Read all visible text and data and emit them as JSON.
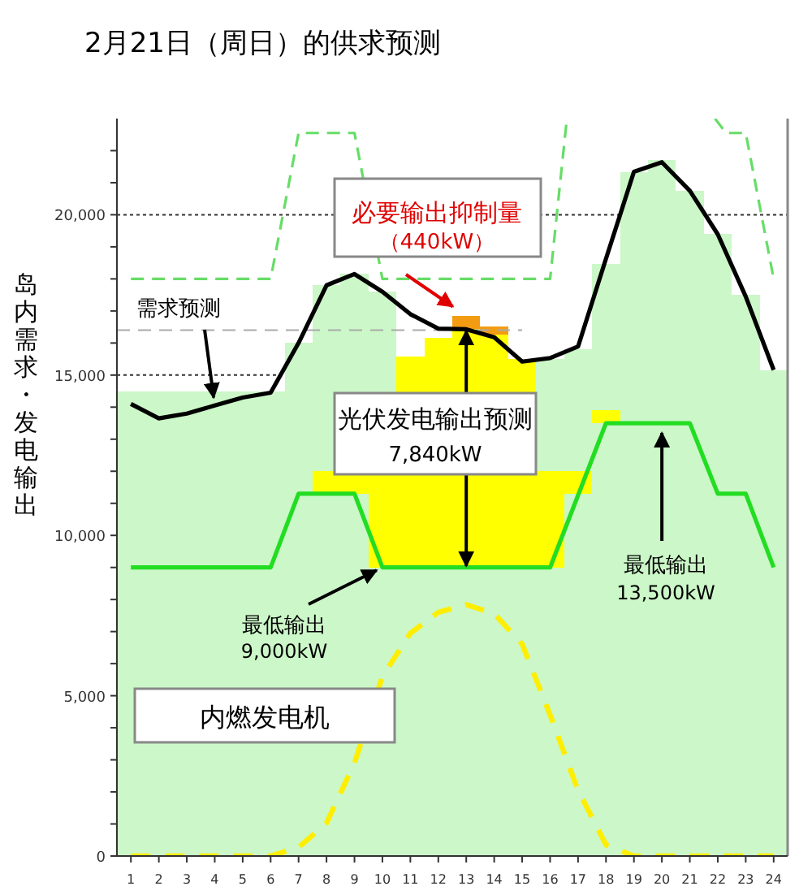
{
  "chart_data": {
    "type": "line",
    "title": "2月21日（周日）的供求预测",
    "ylabel": "岛内需求・发电输出",
    "xlim": [
      0.5,
      24.5
    ],
    "xticks": [
      1,
      2,
      3,
      4,
      5,
      6,
      7,
      8,
      9,
      10,
      11,
      12,
      13,
      14,
      15,
      16,
      17,
      18,
      19,
      20,
      21,
      22,
      23,
      24
    ],
    "ylim": [
      0,
      23000
    ],
    "yticks": [
      {
        "value": 0,
        "label": "0"
      },
      {
        "value": 1000,
        "label": null
      },
      {
        "value": 2000,
        "label": null
      },
      {
        "value": 3000,
        "label": null
      },
      {
        "value": 4000,
        "label": null
      },
      {
        "value": 5000,
        "label": "5,000"
      },
      {
        "value": 6000,
        "label": null
      },
      {
        "value": 7000,
        "label": null
      },
      {
        "value": 8000,
        "label": null
      },
      {
        "value": 9000,
        "label": null
      },
      {
        "value": 10000,
        "label": "10,000"
      },
      {
        "value": 11000,
        "label": null
      },
      {
        "value": 12000,
        "label": null
      },
      {
        "value": 13000,
        "label": null
      },
      {
        "value": 14000,
        "label": null
      },
      {
        "value": 15000,
        "label": "15,000"
      },
      {
        "value": 16000,
        "label": null
      },
      {
        "value": 17000,
        "label": null
      },
      {
        "value": 18000,
        "label": null
      },
      {
        "value": 19000,
        "label": null
      },
      {
        "value": 20000,
        "label": "20,000"
      },
      {
        "value": 21000,
        "label": null
      },
      {
        "value": 22000,
        "label": null
      }
    ],
    "grid": "y",
    "series": [
      {
        "type": "bar",
        "color": "#ccf7c8",
        "x": [
          1,
          2,
          3,
          4,
          5,
          6,
          7,
          8,
          9,
          10,
          11,
          12,
          13,
          14,
          15,
          16,
          17,
          18,
          19,
          20,
          21,
          22,
          23,
          24
        ],
        "values": [
          14500,
          14500,
          14500,
          14500,
          14500,
          14500,
          16000,
          17800,
          18150,
          17600,
          9000,
          9000,
          9000,
          9000,
          9000,
          15500,
          15800,
          18460,
          21340,
          21700,
          20750,
          19400,
          17500,
          15160
        ]
      },
      {
        "type": "bar",
        "color": "#ffff00",
        "x": [
          8,
          9,
          10,
          11,
          12,
          13,
          14,
          15,
          16,
          17,
          18
        ],
        "base": [
          11300,
          11300,
          9000,
          9000,
          9000,
          9000,
          9000,
          9000,
          9000,
          11300,
          13500
        ],
        "values": [
          700,
          700,
          3000,
          6580,
          7170,
          7430,
          7260,
          6500,
          3000,
          700,
          400
        ]
      },
      {
        "type": "bar",
        "color": "#f39c12",
        "x": [
          13,
          14
        ],
        "base": [
          16430,
          16260
        ],
        "values": [
          420,
          260
        ]
      },
      {
        "color": "#aaaaaa",
        "line_style": "dashed",
        "x": [
          0.5,
          15
        ],
        "values": [
          16400,
          16400
        ]
      },
      {
        "color": "#66dd66",
        "line_style": "dashed",
        "x": [
          1,
          6,
          7,
          9,
          10,
          16,
          16.6
        ],
        "values": [
          18000,
          18000,
          22550,
          22550,
          18000,
          18000,
          23000
        ]
      },
      {
        "color": "#66dd66",
        "line_style": "dashed",
        "x": [
          21.9,
          22.3,
          23,
          24
        ],
        "values": [
          23000,
          22550,
          22550,
          18000
        ]
      },
      {
        "color": "#ffee00",
        "line_style": "dashed",
        "x": [
          1,
          2,
          3,
          4,
          5,
          6,
          7,
          8,
          9,
          10,
          11,
          12,
          13,
          14,
          15,
          16,
          17,
          18,
          19,
          20,
          21,
          22,
          23,
          24
        ],
        "values": [
          0,
          0,
          0,
          0,
          0,
          0,
          270,
          1030,
          2900,
          5600,
          6950,
          7600,
          7840,
          7560,
          6610,
          4400,
          2050,
          350,
          0,
          0,
          0,
          0,
          0,
          0
        ]
      },
      {
        "color": "#22dd22",
        "line_style": "solid",
        "x": [
          1,
          6,
          7,
          9,
          10,
          16,
          18,
          21,
          22,
          23,
          24
        ],
        "values": [
          9000,
          9000,
          11300,
          11300,
          9000,
          9000,
          13500,
          13500,
          11300,
          11300,
          9000
        ]
      },
      {
        "color": "#000000",
        "line_style": "solid",
        "x": [
          1,
          2,
          3,
          4,
          5,
          6,
          7,
          8,
          9,
          10,
          11,
          12,
          13,
          14,
          15,
          16,
          17,
          18,
          19,
          20,
          21,
          22,
          23,
          24
        ],
        "values": [
          14100,
          13650,
          13800,
          14050,
          14300,
          14450,
          16000,
          17800,
          18150,
          17600,
          16900,
          16450,
          16430,
          16180,
          15420,
          15530,
          15890,
          18630,
          21340,
          21640,
          20750,
          19390,
          17450,
          15160
        ]
      }
    ],
    "annotations": [
      {
        "text": "需求预测",
        "x": 4,
        "y": 14050
      },
      {
        "text": "必要输出抑制量（440kW）",
        "x": 13,
        "y": 16850
      },
      "光伏发电输出预测\n7,840kW",
      {
        "text": "最低输出\n9,000kW",
        "x": 10,
        "y": 9000
      },
      {
        "text": "最低输出\n13,500kW",
        "x": 20,
        "y": 13500
      },
      "内燃发电机"
    ]
  }
}
